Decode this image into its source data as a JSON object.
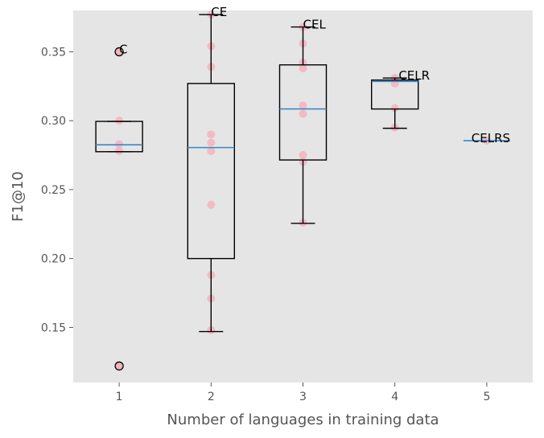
{
  "chart_data": {
    "type": "box",
    "xlabel": "Number of languages in training data",
    "ylabel": "F1@10",
    "xlim": [
      0.5,
      5.5
    ],
    "ylim": [
      0.11,
      0.38
    ],
    "x_ticks": [
      "1",
      "2",
      "3",
      "4",
      "5"
    ],
    "y_ticks": [
      "0.15",
      "0.20",
      "0.25",
      "0.30",
      "0.35"
    ],
    "y_tick_values": [
      0.15,
      0.2,
      0.25,
      0.3,
      0.35
    ],
    "grid": false,
    "background": "#e5e5e5",
    "point_color": "#f4b3bf",
    "median_color": "#3a88c8",
    "boxes": [
      {
        "x": 1,
        "label": "C",
        "q1": 0.2775,
        "median": 0.2825,
        "q3": 0.2995,
        "whisker_low": 0.2775,
        "whisker_high": 0.2995,
        "outliers": [
          0.35,
          0.122
        ],
        "points": [
          0.35,
          0.3,
          0.283,
          0.278,
          0.122
        ]
      },
      {
        "x": 2,
        "label": "CE",
        "q1": 0.2,
        "median": 0.2805,
        "q3": 0.327,
        "whisker_low": 0.147,
        "whisker_high": 0.377,
        "outliers": [],
        "points": [
          0.377,
          0.354,
          0.339,
          0.29,
          0.284,
          0.278,
          0.239,
          0.188,
          0.171,
          0.148
        ]
      },
      {
        "x": 3,
        "label": "CEL",
        "q1": 0.2715,
        "median": 0.3085,
        "q3": 0.3405,
        "whisker_low": 0.2255,
        "whisker_high": 0.368,
        "outliers": [],
        "points": [
          0.368,
          0.356,
          0.342,
          0.338,
          0.311,
          0.305,
          0.275,
          0.27,
          0.226
        ]
      },
      {
        "x": 4,
        "label": "CELR",
        "q1": 0.3085,
        "median": 0.3285,
        "q3": 0.3295,
        "whisker_low": 0.2945,
        "whisker_high": 0.331,
        "outliers": [],
        "points": [
          0.331,
          0.327,
          0.309,
          0.295
        ]
      },
      {
        "x": 5,
        "label": "CELRS",
        "q1": 0.2855,
        "median": 0.2855,
        "q3": 0.2855,
        "whisker_low": 0.2855,
        "whisker_high": 0.2855,
        "outliers": [],
        "points": [
          0.2855
        ]
      }
    ]
  }
}
